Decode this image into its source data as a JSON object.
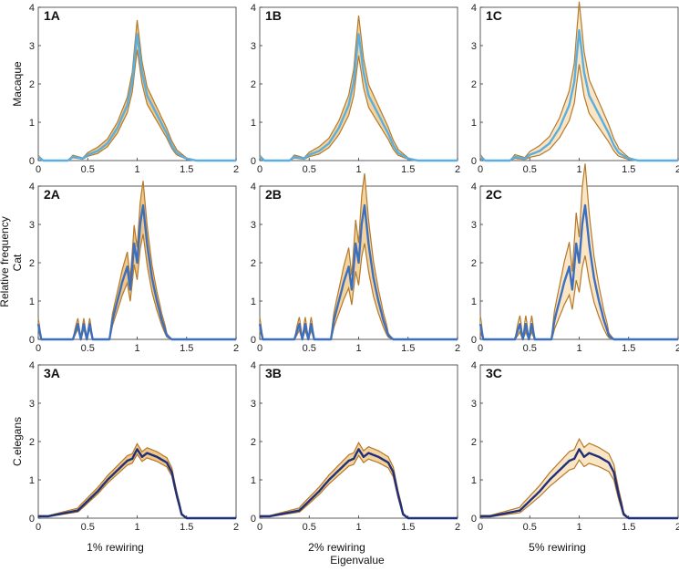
{
  "figure": {
    "y_label_shared": "Relative frequency",
    "x_label_shared": "Eigenvalue"
  },
  "colors": {
    "envelope_stroke": "#b5792a",
    "macaque_line": "#5aaee0",
    "cat_line": "#3d6fbf",
    "celegans_line": "#1f2f7a",
    "fill_1pct": "#f0c88a",
    "fill_2pct": "#f4d49e",
    "fill_5pct": "#fae6c4"
  },
  "chart_data": [
    {
      "type": "area",
      "panel": "1A",
      "row": 0,
      "col": 0,
      "organism": "Macaque",
      "rewiring": "1% rewiring",
      "xlim": [
        0,
        2
      ],
      "ylim": [
        0,
        4
      ],
      "xticks": [
        "0",
        "0.5",
        "1",
        "1.5",
        "2"
      ],
      "yticks": [
        "0",
        "1",
        "2",
        "3",
        "4"
      ],
      "spread": 0.25,
      "series": [
        {
          "name": "Macaque",
          "points": [
            [
              0,
              0.1
            ],
            [
              0.05,
              0
            ],
            [
              0.3,
              0
            ],
            [
              0.35,
              0.1
            ],
            [
              0.45,
              0.05
            ],
            [
              0.5,
              0.15
            ],
            [
              0.6,
              0.25
            ],
            [
              0.7,
              0.45
            ],
            [
              0.8,
              0.85
            ],
            [
              0.9,
              1.45
            ],
            [
              0.95,
              2.05
            ],
            [
              1.0,
              3.3
            ],
            [
              1.05,
              2.3
            ],
            [
              1.1,
              1.7
            ],
            [
              1.2,
              1.2
            ],
            [
              1.3,
              0.7
            ],
            [
              1.35,
              0.4
            ],
            [
              1.4,
              0.2
            ],
            [
              1.5,
              0.05
            ],
            [
              1.6,
              0
            ],
            [
              2.0,
              0
            ]
          ]
        }
      ]
    },
    {
      "type": "area",
      "panel": "1B",
      "row": 0,
      "col": 1,
      "organism": "Macaque",
      "rewiring": "2% rewiring",
      "xlim": [
        0,
        2
      ],
      "ylim": [
        0,
        4
      ],
      "xticks": [
        "0",
        "0.5",
        "1",
        "1.5",
        "2"
      ],
      "yticks": [
        "0",
        "1",
        "2",
        "3",
        "4"
      ],
      "spread": 0.35,
      "series": [
        {
          "name": "Macaque",
          "points": [
            [
              0,
              0.1
            ],
            [
              0.05,
              0
            ],
            [
              0.3,
              0
            ],
            [
              0.35,
              0.1
            ],
            [
              0.45,
              0.05
            ],
            [
              0.5,
              0.15
            ],
            [
              0.6,
              0.25
            ],
            [
              0.7,
              0.45
            ],
            [
              0.8,
              0.85
            ],
            [
              0.9,
              1.45
            ],
            [
              0.95,
              2.05
            ],
            [
              1.0,
              3.3
            ],
            [
              1.05,
              2.3
            ],
            [
              1.1,
              1.7
            ],
            [
              1.2,
              1.2
            ],
            [
              1.3,
              0.7
            ],
            [
              1.35,
              0.4
            ],
            [
              1.4,
              0.2
            ],
            [
              1.5,
              0.05
            ],
            [
              1.6,
              0
            ],
            [
              2.0,
              0
            ]
          ]
        }
      ]
    },
    {
      "type": "area",
      "panel": "1C",
      "row": 0,
      "col": 2,
      "organism": "Macaque",
      "rewiring": "5% rewiring",
      "xlim": [
        0,
        2
      ],
      "ylim": [
        0,
        4
      ],
      "xticks": [
        "0",
        "0.5",
        "1",
        "1.5",
        "2"
      ],
      "yticks": [
        "0",
        "1",
        "2",
        "3",
        "4"
      ],
      "spread": 0.55,
      "series": [
        {
          "name": "Macaque",
          "points": [
            [
              0,
              0.1
            ],
            [
              0.05,
              0
            ],
            [
              0.3,
              0
            ],
            [
              0.35,
              0.1
            ],
            [
              0.45,
              0.05
            ],
            [
              0.5,
              0.15
            ],
            [
              0.6,
              0.25
            ],
            [
              0.7,
              0.45
            ],
            [
              0.8,
              0.85
            ],
            [
              0.9,
              1.45
            ],
            [
              0.95,
              2.05
            ],
            [
              1.0,
              3.4
            ],
            [
              1.05,
              2.3
            ],
            [
              1.1,
              1.7
            ],
            [
              1.2,
              1.2
            ],
            [
              1.3,
              0.7
            ],
            [
              1.35,
              0.4
            ],
            [
              1.4,
              0.2
            ],
            [
              1.5,
              0.05
            ],
            [
              1.6,
              0
            ],
            [
              2.0,
              0
            ]
          ]
        }
      ]
    },
    {
      "type": "area",
      "panel": "2A",
      "row": 1,
      "col": 0,
      "organism": "Cat",
      "rewiring": "1% rewiring",
      "xlim": [
        0,
        2
      ],
      "ylim": [
        0,
        4
      ],
      "xticks": [
        "0",
        "0.5",
        "1",
        "1.5",
        "2"
      ],
      "yticks": [
        "0",
        "1",
        "2",
        "3",
        "4"
      ],
      "spread": 0.45,
      "series": [
        {
          "name": "Cat",
          "points": [
            [
              0,
              0.4
            ],
            [
              0.03,
              0
            ],
            [
              0.35,
              0
            ],
            [
              0.4,
              0.4
            ],
            [
              0.43,
              0
            ],
            [
              0.46,
              0.4
            ],
            [
              0.49,
              0
            ],
            [
              0.52,
              0.4
            ],
            [
              0.55,
              0
            ],
            [
              0.72,
              0
            ],
            [
              0.75,
              0.5
            ],
            [
              0.8,
              1.0
            ],
            [
              0.85,
              1.5
            ],
            [
              0.9,
              1.9
            ],
            [
              0.93,
              1.3
            ],
            [
              0.97,
              2.5
            ],
            [
              1.0,
              2.0
            ],
            [
              1.03,
              3.0
            ],
            [
              1.06,
              3.5
            ],
            [
              1.1,
              2.5
            ],
            [
              1.15,
              1.6
            ],
            [
              1.2,
              1.0
            ],
            [
              1.25,
              0.5
            ],
            [
              1.3,
              0.1
            ],
            [
              1.35,
              0
            ],
            [
              2.0,
              0
            ]
          ]
        }
      ]
    },
    {
      "type": "area",
      "panel": "2B",
      "row": 1,
      "col": 1,
      "organism": "Cat",
      "rewiring": "2% rewiring",
      "xlim": [
        0,
        2
      ],
      "ylim": [
        0,
        4
      ],
      "xticks": [
        "0",
        "0.5",
        "1",
        "1.5",
        "2"
      ],
      "yticks": [
        "0",
        "1",
        "2",
        "3",
        "4"
      ],
      "spread": 0.6,
      "series": [
        {
          "name": "Cat",
          "points": [
            [
              0,
              0.4
            ],
            [
              0.03,
              0
            ],
            [
              0.35,
              0
            ],
            [
              0.4,
              0.4
            ],
            [
              0.43,
              0
            ],
            [
              0.46,
              0.4
            ],
            [
              0.49,
              0
            ],
            [
              0.52,
              0.4
            ],
            [
              0.55,
              0
            ],
            [
              0.72,
              0
            ],
            [
              0.75,
              0.5
            ],
            [
              0.8,
              1.0
            ],
            [
              0.85,
              1.5
            ],
            [
              0.9,
              1.9
            ],
            [
              0.93,
              1.3
            ],
            [
              0.97,
              2.5
            ],
            [
              1.0,
              2.0
            ],
            [
              1.03,
              3.0
            ],
            [
              1.06,
              3.5
            ],
            [
              1.1,
              2.5
            ],
            [
              1.15,
              1.6
            ],
            [
              1.2,
              1.0
            ],
            [
              1.25,
              0.5
            ],
            [
              1.3,
              0.1
            ],
            [
              1.35,
              0
            ],
            [
              2.0,
              0
            ]
          ]
        }
      ]
    },
    {
      "type": "area",
      "panel": "2C",
      "row": 1,
      "col": 2,
      "organism": "Cat",
      "rewiring": "5% rewiring",
      "xlim": [
        0,
        2
      ],
      "ylim": [
        0,
        4
      ],
      "xticks": [
        "0",
        "0.5",
        "1",
        "1.5",
        "2"
      ],
      "yticks": [
        "0",
        "1",
        "2",
        "3",
        "4"
      ],
      "spread": 0.8,
      "series": [
        {
          "name": "Cat",
          "points": [
            [
              0,
              0.4
            ],
            [
              0.03,
              0
            ],
            [
              0.35,
              0
            ],
            [
              0.4,
              0.4
            ],
            [
              0.43,
              0
            ],
            [
              0.46,
              0.4
            ],
            [
              0.49,
              0
            ],
            [
              0.52,
              0.4
            ],
            [
              0.55,
              0
            ],
            [
              0.72,
              0
            ],
            [
              0.75,
              0.5
            ],
            [
              0.8,
              1.0
            ],
            [
              0.85,
              1.5
            ],
            [
              0.9,
              1.9
            ],
            [
              0.93,
              1.3
            ],
            [
              0.97,
              2.5
            ],
            [
              1.0,
              2.0
            ],
            [
              1.03,
              3.0
            ],
            [
              1.06,
              3.5
            ],
            [
              1.1,
              2.5
            ],
            [
              1.15,
              1.6
            ],
            [
              1.2,
              1.0
            ],
            [
              1.25,
              0.5
            ],
            [
              1.3,
              0.1
            ],
            [
              1.35,
              0
            ],
            [
              2.0,
              0
            ]
          ]
        }
      ]
    },
    {
      "type": "area",
      "panel": "3A",
      "row": 2,
      "col": 0,
      "organism": "C.elegans",
      "rewiring": "1% rewiring",
      "xlim": [
        0,
        2
      ],
      "ylim": [
        0,
        4
      ],
      "xticks": [
        "0",
        "0.5",
        "1",
        "1.5",
        "2"
      ],
      "yticks": [
        "0",
        "1",
        "2",
        "3",
        "4"
      ],
      "spread": 0.12,
      "series": [
        {
          "name": "C.elegans",
          "points": [
            [
              0,
              0.05
            ],
            [
              0.1,
              0.05
            ],
            [
              0.2,
              0.1
            ],
            [
              0.3,
              0.15
            ],
            [
              0.4,
              0.2
            ],
            [
              0.5,
              0.45
            ],
            [
              0.6,
              0.7
            ],
            [
              0.7,
              1.0
            ],
            [
              0.8,
              1.25
            ],
            [
              0.9,
              1.5
            ],
            [
              0.95,
              1.55
            ],
            [
              1.0,
              1.8
            ],
            [
              1.05,
              1.6
            ],
            [
              1.1,
              1.7
            ],
            [
              1.2,
              1.6
            ],
            [
              1.3,
              1.45
            ],
            [
              1.35,
              1.2
            ],
            [
              1.4,
              0.6
            ],
            [
              1.45,
              0.1
            ],
            [
              1.5,
              0
            ],
            [
              2.0,
              0
            ]
          ]
        }
      ]
    },
    {
      "type": "area",
      "panel": "3B",
      "row": 2,
      "col": 1,
      "organism": "C.elegans",
      "rewiring": "2% rewiring",
      "xlim": [
        0,
        2
      ],
      "ylim": [
        0,
        4
      ],
      "xticks": [
        "0",
        "0.5",
        "1",
        "1.5",
        "2"
      ],
      "yticks": [
        "0",
        "1",
        "2",
        "3",
        "4"
      ],
      "spread": 0.16,
      "series": [
        {
          "name": "C.elegans",
          "points": [
            [
              0,
              0.05
            ],
            [
              0.1,
              0.05
            ],
            [
              0.2,
              0.1
            ],
            [
              0.3,
              0.15
            ],
            [
              0.4,
              0.2
            ],
            [
              0.5,
              0.45
            ],
            [
              0.6,
              0.7
            ],
            [
              0.7,
              1.0
            ],
            [
              0.8,
              1.25
            ],
            [
              0.9,
              1.5
            ],
            [
              0.95,
              1.55
            ],
            [
              1.0,
              1.8
            ],
            [
              1.05,
              1.6
            ],
            [
              1.1,
              1.7
            ],
            [
              1.2,
              1.6
            ],
            [
              1.3,
              1.45
            ],
            [
              1.35,
              1.2
            ],
            [
              1.4,
              0.6
            ],
            [
              1.45,
              0.1
            ],
            [
              1.5,
              0
            ],
            [
              2.0,
              0
            ]
          ]
        }
      ]
    },
    {
      "type": "area",
      "panel": "3C",
      "row": 2,
      "col": 2,
      "organism": "C.elegans",
      "rewiring": "5% rewiring",
      "xlim": [
        0,
        2
      ],
      "ylim": [
        0,
        4
      ],
      "xticks": [
        "0",
        "0.5",
        "1",
        "1.5",
        "2"
      ],
      "yticks": [
        "0",
        "1",
        "2",
        "3",
        "4"
      ],
      "spread": 0.3,
      "series": [
        {
          "name": "C.elegans",
          "points": [
            [
              0,
              0.05
            ],
            [
              0.1,
              0.05
            ],
            [
              0.2,
              0.1
            ],
            [
              0.3,
              0.15
            ],
            [
              0.4,
              0.2
            ],
            [
              0.5,
              0.45
            ],
            [
              0.6,
              0.7
            ],
            [
              0.7,
              1.0
            ],
            [
              0.8,
              1.25
            ],
            [
              0.9,
              1.5
            ],
            [
              0.95,
              1.55
            ],
            [
              1.0,
              1.8
            ],
            [
              1.05,
              1.6
            ],
            [
              1.1,
              1.7
            ],
            [
              1.2,
              1.6
            ],
            [
              1.3,
              1.45
            ],
            [
              1.35,
              1.2
            ],
            [
              1.4,
              0.6
            ],
            [
              1.45,
              0.1
            ],
            [
              1.5,
              0
            ],
            [
              2.0,
              0
            ]
          ]
        }
      ]
    }
  ]
}
